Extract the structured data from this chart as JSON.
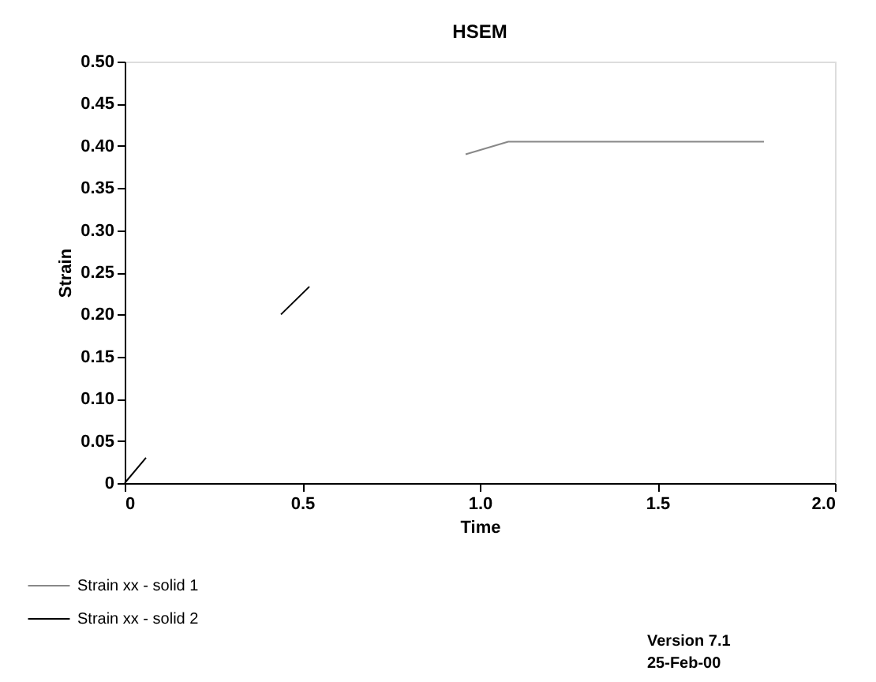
{
  "chart_data": {
    "type": "line",
    "title": "HSEM",
    "xlabel": "Time",
    "ylabel": "Strain",
    "xlim": [
      0,
      2
    ],
    "xticks": [
      0,
      0.5,
      {
        "value": 1,
        "label": "1.0"
      },
      1.5,
      {
        "value": 2,
        "label": "2.0"
      }
    ],
    "ylim": [
      0,
      0.5
    ],
    "yticks": [
      0,
      {
        "value": 0.05,
        "label": "0.05"
      },
      {
        "value": 0.1,
        "label": "0.10"
      },
      {
        "value": 0.15,
        "label": "0.15"
      },
      {
        "value": 0.2,
        "label": "0.20"
      },
      {
        "value": 0.25,
        "label": "0.25"
      },
      {
        "value": 0.3,
        "label": "0.30"
      },
      {
        "value": 0.35,
        "label": "0.35"
      },
      {
        "value": 0.4,
        "label": "0.40"
      },
      {
        "value": 0.45,
        "label": "0.45"
      },
      {
        "value": 0.5,
        "label": "0.50"
      }
    ],
    "series": [
      {
        "name": "Strain xx - solid 1",
        "color": "#888888",
        "x": [
          0.96,
          1.08,
          1.8
        ],
        "values": [
          0.39,
          0.405,
          0.405
        ]
      },
      {
        "name": "Strain xx - solid 2",
        "color": "#000000",
        "x": [
          0,
          0.06,
          0.3,
          0.44,
          0.52
        ],
        "values": [
          0,
          0.03,
          null,
          0.2,
          0.233
        ]
      }
    ],
    "legend": "bottom left",
    "grid": false,
    "line_style": "solid",
    "marker": "none",
    "annotations": [
      "Version 7.1",
      "25-Feb-00"
    ]
  }
}
